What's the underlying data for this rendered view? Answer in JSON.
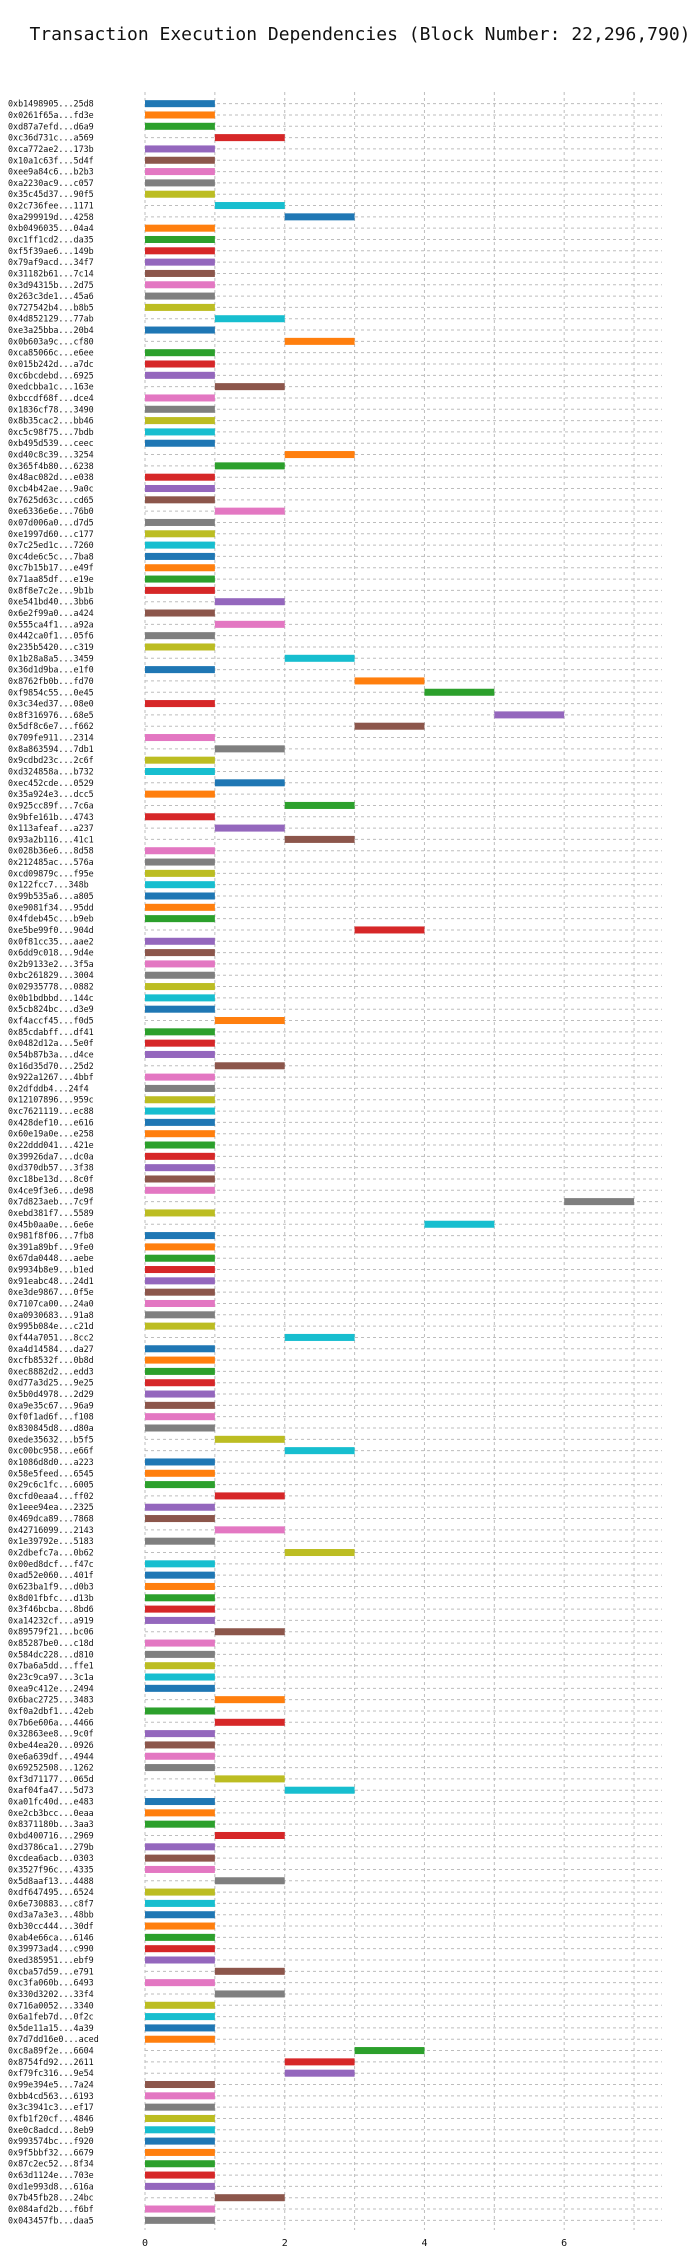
{
  "chart_data": {
    "type": "bar",
    "orientation": "horizontal-gantt",
    "title": "Transaction Execution Dependencies (Block Number: 22,296,790)",
    "xlabel": "",
    "ylabel": "",
    "xlim": [
      0,
      7.4
    ],
    "xticks": [
      0,
      2,
      4,
      6
    ],
    "grid": true,
    "palette": [
      "#1f77b4",
      "#ff7f0e",
      "#2ca02c",
      "#d62728",
      "#9467bd",
      "#8c564b",
      "#e377c2",
      "#7f7f7f",
      "#bcbd22",
      "#17becf"
    ],
    "transactions": [
      {
        "label": "0xb1498905...25d8",
        "start": 0,
        "end": 1
      },
      {
        "label": "0x0261f65a...fd3e",
        "start": 0,
        "end": 1
      },
      {
        "label": "0xd87a7efd...d6a9",
        "start": 0,
        "end": 1
      },
      {
        "label": "0xc36d731c...a569",
        "start": 1,
        "end": 2
      },
      {
        "label": "0xca772ae2...173b",
        "start": 0,
        "end": 1
      },
      {
        "label": "0x10a1c63f...5d4f",
        "start": 0,
        "end": 1
      },
      {
        "label": "0xee9a84c6...b2b3",
        "start": 0,
        "end": 1
      },
      {
        "label": "0xa2230ac9...c057",
        "start": 0,
        "end": 1
      },
      {
        "label": "0x35c45d37...90f5",
        "start": 0,
        "end": 1
      },
      {
        "label": "0x2c736fee...1171",
        "start": 1,
        "end": 2
      },
      {
        "label": "0xa299919d...4258",
        "start": 2,
        "end": 3
      },
      {
        "label": "0xb0496035...04a4",
        "start": 0,
        "end": 1
      },
      {
        "label": "0xc1ff1cd2...da35",
        "start": 0,
        "end": 1
      },
      {
        "label": "0xf5f39ae6...149b",
        "start": 0,
        "end": 1
      },
      {
        "label": "0x79af9acd...34f7",
        "start": 0,
        "end": 1
      },
      {
        "label": "0x31182b61...7c14",
        "start": 0,
        "end": 1
      },
      {
        "label": "0x3d94315b...2d75",
        "start": 0,
        "end": 1
      },
      {
        "label": "0x263c3de1...45a6",
        "start": 0,
        "end": 1
      },
      {
        "label": "0x727542b4...b8b5",
        "start": 0,
        "end": 1
      },
      {
        "label": "0x4d852129...77ab",
        "start": 1,
        "end": 2
      },
      {
        "label": "0xe3a25bba...20b4",
        "start": 0,
        "end": 1
      },
      {
        "label": "0x0b603a9c...cf80",
        "start": 2,
        "end": 3
      },
      {
        "label": "0xca85066c...e6ee",
        "start": 0,
        "end": 1
      },
      {
        "label": "0x015b242d...a7dc",
        "start": 0,
        "end": 1
      },
      {
        "label": "0xc6bcdebd...6925",
        "start": 0,
        "end": 1
      },
      {
        "label": "0xedcbba1c...163e",
        "start": 1,
        "end": 2
      },
      {
        "label": "0xbccdf68f...dce4",
        "start": 0,
        "end": 1
      },
      {
        "label": "0x1836cf78...3490",
        "start": 0,
        "end": 1
      },
      {
        "label": "0x8b35cac2...bb46",
        "start": 0,
        "end": 1
      },
      {
        "label": "0xc5c98f75...7bdb",
        "start": 0,
        "end": 1
      },
      {
        "label": "0xb495d539...ceec",
        "start": 0,
        "end": 1
      },
      {
        "label": "0xd40c8c39...3254",
        "start": 2,
        "end": 3
      },
      {
        "label": "0x365f4b80...6238",
        "start": 1,
        "end": 2
      },
      {
        "label": "0x48ac082d...e038",
        "start": 0,
        "end": 1
      },
      {
        "label": "0xcb4b42ae...9a0c",
        "start": 0,
        "end": 1
      },
      {
        "label": "0x7625d63c...cd65",
        "start": 0,
        "end": 1
      },
      {
        "label": "0xe6336e6e...76b0",
        "start": 1,
        "end": 2
      },
      {
        "label": "0x07d006a0...d7d5",
        "start": 0,
        "end": 1
      },
      {
        "label": "0xe1997d60...c177",
        "start": 0,
        "end": 1
      },
      {
        "label": "0x7c25ed1c...7260",
        "start": 0,
        "end": 1
      },
      {
        "label": "0xc4de6c5c...7ba8",
        "start": 0,
        "end": 1
      },
      {
        "label": "0xc7b15b17...e49f",
        "start": 0,
        "end": 1
      },
      {
        "label": "0x71aa85df...e19e",
        "start": 0,
        "end": 1
      },
      {
        "label": "0x8f8e7c2e...9b1b",
        "start": 0,
        "end": 1
      },
      {
        "label": "0xe541bd40...3bb6",
        "start": 1,
        "end": 2
      },
      {
        "label": "0x6e2f99a0...a424",
        "start": 0,
        "end": 1
      },
      {
        "label": "0x555ca4f1...a92a",
        "start": 1,
        "end": 2
      },
      {
        "label": "0x442ca0f1...05f6",
        "start": 0,
        "end": 1
      },
      {
        "label": "0x235b5420...c319",
        "start": 0,
        "end": 1
      },
      {
        "label": "0x1b28a8a5...3459",
        "start": 2,
        "end": 3
      },
      {
        "label": "0x36d1d9ba...e1f0",
        "start": 0,
        "end": 1
      },
      {
        "label": "0x8762fb0b...fd70",
        "start": 3,
        "end": 4
      },
      {
        "label": "0xf9854c55...0e45",
        "start": 4,
        "end": 5
      },
      {
        "label": "0x3c34ed37...08e0",
        "start": 0,
        "end": 1
      },
      {
        "label": "0x8f316976...68e5",
        "start": 5,
        "end": 6
      },
      {
        "label": "0x5df8c6e7...f662",
        "start": 3,
        "end": 4
      },
      {
        "label": "0x709fe911...2314",
        "start": 0,
        "end": 1
      },
      {
        "label": "0x8a863594...7db1",
        "start": 1,
        "end": 2
      },
      {
        "label": "0x9cdbd23c...2c6f",
        "start": 0,
        "end": 1
      },
      {
        "label": "0xd324858a...b732",
        "start": 0,
        "end": 1
      },
      {
        "label": "0xec452cde...0529",
        "start": 1,
        "end": 2
      },
      {
        "label": "0x35a924e3...dcc5",
        "start": 0,
        "end": 1
      },
      {
        "label": "0x925cc89f...7c6a",
        "start": 2,
        "end": 3
      },
      {
        "label": "0x9bfe161b...4743",
        "start": 0,
        "end": 1
      },
      {
        "label": "0x113afeaf...a237",
        "start": 1,
        "end": 2
      },
      {
        "label": "0x93a2b116...41c1",
        "start": 2,
        "end": 3
      },
      {
        "label": "0x028b36e6...8d58",
        "start": 0,
        "end": 1
      },
      {
        "label": "0x212485ac...576a",
        "start": 0,
        "end": 1
      },
      {
        "label": "0xcd09879c...f95e",
        "start": 0,
        "end": 1
      },
      {
        "label": "0x122fcc7...348b",
        "start": 0,
        "end": 1
      },
      {
        "label": "0x99b535a6...a805",
        "start": 0,
        "end": 1
      },
      {
        "label": "0xe9081f34...95dd",
        "start": 0,
        "end": 1
      },
      {
        "label": "0x4fdeb45c...b9eb",
        "start": 0,
        "end": 1
      },
      {
        "label": "0xe5be99f0...904d",
        "start": 3,
        "end": 4
      },
      {
        "label": "0x0f81cc35...aae2",
        "start": 0,
        "end": 1
      },
      {
        "label": "0x6dd9c018...9d4e",
        "start": 0,
        "end": 1
      },
      {
        "label": "0x2b9133e2...3f5a",
        "start": 0,
        "end": 1
      },
      {
        "label": "0xbc261829...3004",
        "start": 0,
        "end": 1
      },
      {
        "label": "0x02935778...0882",
        "start": 0,
        "end": 1
      },
      {
        "label": "0x0b1bdbbd...144c",
        "start": 0,
        "end": 1
      },
      {
        "label": "0x5cb824bc...d3e9",
        "start": 0,
        "end": 1
      },
      {
        "label": "0xf4accf45...f0d5",
        "start": 1,
        "end": 2
      },
      {
        "label": "0x85cdabff...df41",
        "start": 0,
        "end": 1
      },
      {
        "label": "0x0482d12a...5e0f",
        "start": 0,
        "end": 1
      },
      {
        "label": "0x54b87b3a...d4ce",
        "start": 0,
        "end": 1
      },
      {
        "label": "0x16d35d70...25d2",
        "start": 1,
        "end": 2
      },
      {
        "label": "0x922a1267...4bbf",
        "start": 0,
        "end": 1
      },
      {
        "label": "0x2dfddb4...24f4",
        "start": 0,
        "end": 1
      },
      {
        "label": "0x12107896...959c",
        "start": 0,
        "end": 1
      },
      {
        "label": "0xc7621119...ec88",
        "start": 0,
        "end": 1
      },
      {
        "label": "0x428def10...e616",
        "start": 0,
        "end": 1
      },
      {
        "label": "0x60e19a0e...e258",
        "start": 0,
        "end": 1
      },
      {
        "label": "0x22ddd041...421e",
        "start": 0,
        "end": 1
      },
      {
        "label": "0x39926da7...dc0a",
        "start": 0,
        "end": 1
      },
      {
        "label": "0xd370db57...3f38",
        "start": 0,
        "end": 1
      },
      {
        "label": "0xc18be13d...8c0f",
        "start": 0,
        "end": 1
      },
      {
        "label": "0x4ce9f3e6...de98",
        "start": 0,
        "end": 1
      },
      {
        "label": "0x7d823aeb...7c9f",
        "start": 6,
        "end": 7
      },
      {
        "label": "0xebd381f7...5589",
        "start": 0,
        "end": 1
      },
      {
        "label": "0x45b0aa0e...6e6e",
        "start": 4,
        "end": 5
      },
      {
        "label": "0x981f8f06...7fb8",
        "start": 0,
        "end": 1
      },
      {
        "label": "0x391a89bf...9fe0",
        "start": 0,
        "end": 1
      },
      {
        "label": "0x67da0448...aebe",
        "start": 0,
        "end": 1
      },
      {
        "label": "0x9934b8e9...b1ed",
        "start": 0,
        "end": 1
      },
      {
        "label": "0x91eabc48...24d1",
        "start": 0,
        "end": 1
      },
      {
        "label": "0xe3de9867...0f5e",
        "start": 0,
        "end": 1
      },
      {
        "label": "0x7107ca00...24a0",
        "start": 0,
        "end": 1
      },
      {
        "label": "0xa0930683...91a8",
        "start": 0,
        "end": 1
      },
      {
        "label": "0x995b084e...c21d",
        "start": 0,
        "end": 1
      },
      {
        "label": "0xf44a7051...8cc2",
        "start": 2,
        "end": 3
      },
      {
        "label": "0xa4d14584...da27",
        "start": 0,
        "end": 1
      },
      {
        "label": "0xcfb8532f...0b8d",
        "start": 0,
        "end": 1
      },
      {
        "label": "0xec8882d2...edd3",
        "start": 0,
        "end": 1
      },
      {
        "label": "0xd77a3d25...9e25",
        "start": 0,
        "end": 1
      },
      {
        "label": "0x5b0d4978...2d29",
        "start": 0,
        "end": 1
      },
      {
        "label": "0xa9e35c67...96a9",
        "start": 0,
        "end": 1
      },
      {
        "label": "0xf0f1ad6f...f108",
        "start": 0,
        "end": 1
      },
      {
        "label": "0x830845d8...d80a",
        "start": 0,
        "end": 1
      },
      {
        "label": "0xede35632...b5f5",
        "start": 1,
        "end": 2
      },
      {
        "label": "0xc00bc958...e66f",
        "start": 2,
        "end": 3
      },
      {
        "label": "0x1086d8d0...a223",
        "start": 0,
        "end": 1
      },
      {
        "label": "0x58e5feed...6545",
        "start": 0,
        "end": 1
      },
      {
        "label": "0x29c6c1fc...6005",
        "start": 0,
        "end": 1
      },
      {
        "label": "0xcfd0eaa4...ff02",
        "start": 1,
        "end": 2
      },
      {
        "label": "0x1eee94ea...2325",
        "start": 0,
        "end": 1
      },
      {
        "label": "0x469dca89...7868",
        "start": 0,
        "end": 1
      },
      {
        "label": "0x42716099...2143",
        "start": 1,
        "end": 2
      },
      {
        "label": "0x1e39792e...5183",
        "start": 0,
        "end": 1
      },
      {
        "label": "0x2dbefc7a...0b62",
        "start": 2,
        "end": 3
      },
      {
        "label": "0x00ed8dcf...f47c",
        "start": 0,
        "end": 1
      },
      {
        "label": "0xad52e060...401f",
        "start": 0,
        "end": 1
      },
      {
        "label": "0x623ba1f9...d0b3",
        "start": 0,
        "end": 1
      },
      {
        "label": "0x8d01fbfc...d13b",
        "start": 0,
        "end": 1
      },
      {
        "label": "0x3f46bcba...8bd6",
        "start": 0,
        "end": 1
      },
      {
        "label": "0xa14232cf...a919",
        "start": 0,
        "end": 1
      },
      {
        "label": "0x89579f21...bc06",
        "start": 1,
        "end": 2
      },
      {
        "label": "0x85287be0...c18d",
        "start": 0,
        "end": 1
      },
      {
        "label": "0x584dc228...d810",
        "start": 0,
        "end": 1
      },
      {
        "label": "0x7ba6a5dd...ffe1",
        "start": 0,
        "end": 1
      },
      {
        "label": "0x23c9ca97...3c1a",
        "start": 0,
        "end": 1
      },
      {
        "label": "0xea9c412e...2494",
        "start": 0,
        "end": 1
      },
      {
        "label": "0x6bac2725...3483",
        "start": 1,
        "end": 2
      },
      {
        "label": "0xf0a2dbf1...42eb",
        "start": 0,
        "end": 1
      },
      {
        "label": "0x7b6e606a...4466",
        "start": 1,
        "end": 2
      },
      {
        "label": "0x32863ee8...9c0f",
        "start": 0,
        "end": 1
      },
      {
        "label": "0xbe44ea20...0926",
        "start": 0,
        "end": 1
      },
      {
        "label": "0xe6a639df...4944",
        "start": 0,
        "end": 1
      },
      {
        "label": "0x69252508...1262",
        "start": 0,
        "end": 1
      },
      {
        "label": "0xf3d71177...065d",
        "start": 1,
        "end": 2
      },
      {
        "label": "0xaf04fa47...5d73",
        "start": 2,
        "end": 3
      },
      {
        "label": "0xa01fc40d...e483",
        "start": 0,
        "end": 1
      },
      {
        "label": "0xe2cb3bcc...0eaa",
        "start": 0,
        "end": 1
      },
      {
        "label": "0x8371180b...3aa3",
        "start": 0,
        "end": 1
      },
      {
        "label": "0xbd400716...2969",
        "start": 1,
        "end": 2
      },
      {
        "label": "0xd3786ca1...279b",
        "start": 0,
        "end": 1
      },
      {
        "label": "0xcdea6acb...0303",
        "start": 0,
        "end": 1
      },
      {
        "label": "0x3527f96c...4335",
        "start": 0,
        "end": 1
      },
      {
        "label": "0x5d8aaf13...4488",
        "start": 1,
        "end": 2
      },
      {
        "label": "0xdf647495...6524",
        "start": 0,
        "end": 1
      },
      {
        "label": "0x6e730883...c8f7",
        "start": 0,
        "end": 1
      },
      {
        "label": "0xd3a7a3e3...48bb",
        "start": 0,
        "end": 1
      },
      {
        "label": "0xb30cc444...30df",
        "start": 0,
        "end": 1
      },
      {
        "label": "0xab4e66ca...6146",
        "start": 0,
        "end": 1
      },
      {
        "label": "0x39973ad4...c990",
        "start": 0,
        "end": 1
      },
      {
        "label": "0xed385951...ebf9",
        "start": 0,
        "end": 1
      },
      {
        "label": "0xcba57d59...e791",
        "start": 1,
        "end": 2
      },
      {
        "label": "0xc3fa060b...6493",
        "start": 0,
        "end": 1
      },
      {
        "label": "0x330d3202...33f4",
        "start": 1,
        "end": 2
      },
      {
        "label": "0x716a0052...3340",
        "start": 0,
        "end": 1
      },
      {
        "label": "0x6a1feb7d...0f2c",
        "start": 0,
        "end": 1
      },
      {
        "label": "0x5de11a15...4a39",
        "start": 0,
        "end": 1
      },
      {
        "label": "0x7d7dd16e0...aced",
        "start": 0,
        "end": 1
      },
      {
        "label": "0xc8a89f2e...6604",
        "start": 3,
        "end": 4
      },
      {
        "label": "0x8754fd92...2611",
        "start": 2,
        "end": 3
      },
      {
        "label": "0xf79fc316...9e54",
        "start": 2,
        "end": 3
      },
      {
        "label": "0x99e394e5...7a24",
        "start": 0,
        "end": 1
      },
      {
        "label": "0xbb4cd563...6193",
        "start": 0,
        "end": 1
      },
      {
        "label": "0x3c3941c3...ef17",
        "start": 0,
        "end": 1
      },
      {
        "label": "0xfb1f20cf...4846",
        "start": 0,
        "end": 1
      },
      {
        "label": "0xe0c8adcd...8eb9",
        "start": 0,
        "end": 1
      },
      {
        "label": "0x993574bc...f920",
        "start": 0,
        "end": 1
      },
      {
        "label": "0x9f5bbf32...6679",
        "start": 0,
        "end": 1
      },
      {
        "label": "0x87c2ec52...8f34",
        "start": 0,
        "end": 1
      },
      {
        "label": "0x63d1124e...703e",
        "start": 0,
        "end": 1
      },
      {
        "label": "0xd1e993d8...616a",
        "start": 0,
        "end": 1
      },
      {
        "label": "0x7b45fb28...24bc",
        "start": 1,
        "end": 2
      },
      {
        "label": "0x084afd2b...f6bf",
        "start": 0,
        "end": 1
      },
      {
        "label": "0x043457fb...daa5",
        "start": 0,
        "end": 1
      }
    ]
  }
}
